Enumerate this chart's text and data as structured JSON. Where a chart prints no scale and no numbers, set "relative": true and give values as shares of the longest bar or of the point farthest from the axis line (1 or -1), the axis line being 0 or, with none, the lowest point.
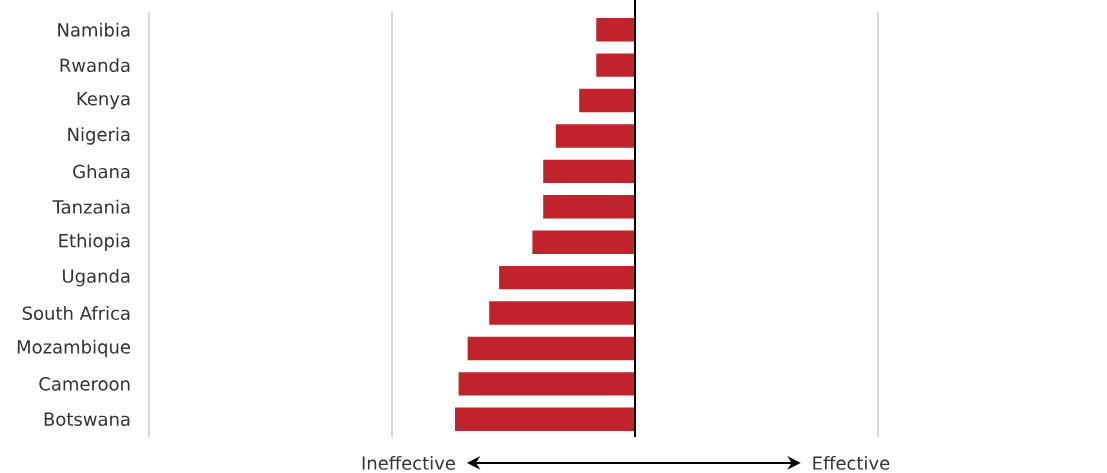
{
  "chart_data": {
    "type": "bar",
    "orientation": "horizontal",
    "relative": true,
    "categories": [
      "Namibia",
      "Rwanda",
      "Kenya",
      "Nigeria",
      "Ghana",
      "Tanzania",
      "Ethiopia",
      "Uganda",
      "South Africa",
      "Mozambique",
      "Cameroon",
      "Botswana"
    ],
    "values": [
      -0.215,
      -0.215,
      -0.31,
      -0.44,
      -0.51,
      -0.51,
      -0.57,
      -0.755,
      -0.81,
      -0.93,
      -0.98,
      -1
    ],
    "color": "#c0232b",
    "grid": "x",
    "annotations": [
      "Ineffective",
      "Effective"
    ]
  }
}
